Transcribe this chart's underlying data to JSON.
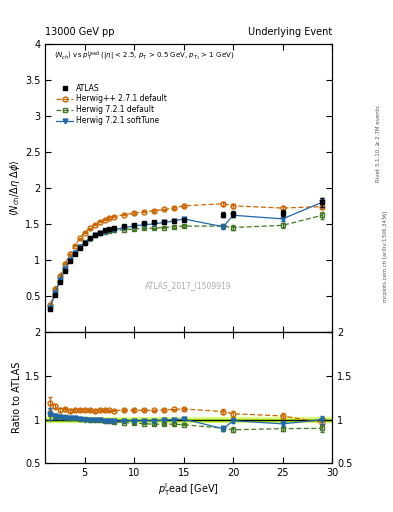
{
  "title_left": "13000 GeV pp",
  "title_right": "Underlying Event",
  "right_label_top": "Rivet 3.1.10, ≥ 2.7M events",
  "right_label_bottom": "mcplots.cern.ch [arXiv:1306.3436]",
  "watermark": "ATLAS_2017_I1509919",
  "ylabel_main": "⟨ N_{ch}/ Δη deltaφ⟩",
  "ylabel_ratio": "Ratio to ATLAS",
  "xlabel": "p_{T}^{l}ead [GeV]",
  "xlim": [
    1,
    30
  ],
  "ylim_main": [
    0,
    4
  ],
  "ylim_ratio": [
    0.5,
    2.0
  ],
  "atlas_x": [
    1.5,
    2.0,
    2.5,
    3.0,
    3.5,
    4.0,
    4.5,
    5.0,
    5.5,
    6.0,
    6.5,
    7.0,
    7.5,
    8.0,
    9.0,
    10.0,
    11.0,
    12.0,
    13.0,
    14.0,
    15.0,
    19.0,
    20.0,
    25.0,
    29.0
  ],
  "atlas_y": [
    0.32,
    0.52,
    0.7,
    0.85,
    0.98,
    1.08,
    1.17,
    1.24,
    1.3,
    1.35,
    1.38,
    1.41,
    1.43,
    1.45,
    1.47,
    1.49,
    1.51,
    1.52,
    1.53,
    1.54,
    1.56,
    1.63,
    1.64,
    1.65,
    1.8
  ],
  "atlas_yerr": [
    0.01,
    0.01,
    0.01,
    0.01,
    0.01,
    0.01,
    0.01,
    0.01,
    0.01,
    0.01,
    0.01,
    0.01,
    0.01,
    0.01,
    0.01,
    0.01,
    0.01,
    0.01,
    0.01,
    0.01,
    0.01,
    0.04,
    0.04,
    0.04,
    0.06
  ],
  "hpp_x": [
    1.5,
    2.0,
    2.5,
    3.0,
    3.5,
    4.0,
    4.5,
    5.0,
    5.5,
    6.0,
    6.5,
    7.0,
    7.5,
    8.0,
    9.0,
    10.0,
    11.0,
    12.0,
    13.0,
    14.0,
    15.0,
    19.0,
    20.0,
    25.0,
    29.0
  ],
  "hpp_y": [
    0.38,
    0.6,
    0.78,
    0.95,
    1.08,
    1.2,
    1.3,
    1.38,
    1.44,
    1.49,
    1.53,
    1.56,
    1.58,
    1.6,
    1.63,
    1.65,
    1.67,
    1.68,
    1.7,
    1.72,
    1.75,
    1.78,
    1.75,
    1.72,
    1.74
  ],
  "hpp_yerr": [
    0.02,
    0.01,
    0.01,
    0.01,
    0.01,
    0.01,
    0.01,
    0.01,
    0.01,
    0.01,
    0.01,
    0.01,
    0.01,
    0.01,
    0.01,
    0.01,
    0.01,
    0.01,
    0.01,
    0.01,
    0.01,
    0.03,
    0.03,
    0.03,
    0.03
  ],
  "h721d_x": [
    1.5,
    2.0,
    2.5,
    3.0,
    3.5,
    4.0,
    4.5,
    5.0,
    5.5,
    6.0,
    6.5,
    7.0,
    7.5,
    8.0,
    9.0,
    10.0,
    11.0,
    12.0,
    13.0,
    14.0,
    15.0,
    19.0,
    20.0,
    25.0,
    29.0
  ],
  "h721d_y": [
    0.34,
    0.54,
    0.72,
    0.88,
    1.0,
    1.1,
    1.18,
    1.25,
    1.3,
    1.34,
    1.37,
    1.39,
    1.4,
    1.41,
    1.42,
    1.43,
    1.44,
    1.44,
    1.45,
    1.46,
    1.47,
    1.47,
    1.45,
    1.48,
    1.62
  ],
  "h721d_yerr": [
    0.02,
    0.01,
    0.01,
    0.01,
    0.01,
    0.01,
    0.01,
    0.01,
    0.01,
    0.01,
    0.01,
    0.01,
    0.01,
    0.01,
    0.01,
    0.01,
    0.01,
    0.01,
    0.01,
    0.01,
    0.01,
    0.03,
    0.03,
    0.03,
    0.05
  ],
  "h721s_x": [
    1.5,
    2.0,
    2.5,
    3.0,
    3.5,
    4.0,
    4.5,
    5.0,
    5.5,
    6.0,
    6.5,
    7.0,
    7.5,
    8.0,
    9.0,
    10.0,
    11.0,
    12.0,
    13.0,
    14.0,
    15.0,
    19.0,
    20.0,
    25.0,
    29.0
  ],
  "h721s_y": [
    0.34,
    0.54,
    0.72,
    0.87,
    1.0,
    1.1,
    1.18,
    1.24,
    1.29,
    1.34,
    1.37,
    1.39,
    1.41,
    1.42,
    1.45,
    1.47,
    1.49,
    1.5,
    1.52,
    1.54,
    1.57,
    1.46,
    1.62,
    1.57,
    1.8
  ],
  "h721s_yerr": [
    0.02,
    0.01,
    0.01,
    0.01,
    0.01,
    0.01,
    0.01,
    0.01,
    0.01,
    0.01,
    0.01,
    0.01,
    0.01,
    0.01,
    0.01,
    0.01,
    0.01,
    0.01,
    0.01,
    0.01,
    0.01,
    0.03,
    0.03,
    0.03,
    0.06
  ],
  "atlas_color": "#000000",
  "hpp_color": "#cc6600",
  "h721d_color": "#447722",
  "h721s_color": "#2266aa",
  "ratio_band_color": "#ccff44",
  "ratio_band_alpha": 0.55,
  "legend_entries": [
    "ATLAS",
    "Herwig++ 2.7.1 default",
    "Herwig 7.2.1 default",
    "Herwig 7.2.1 softTune"
  ]
}
